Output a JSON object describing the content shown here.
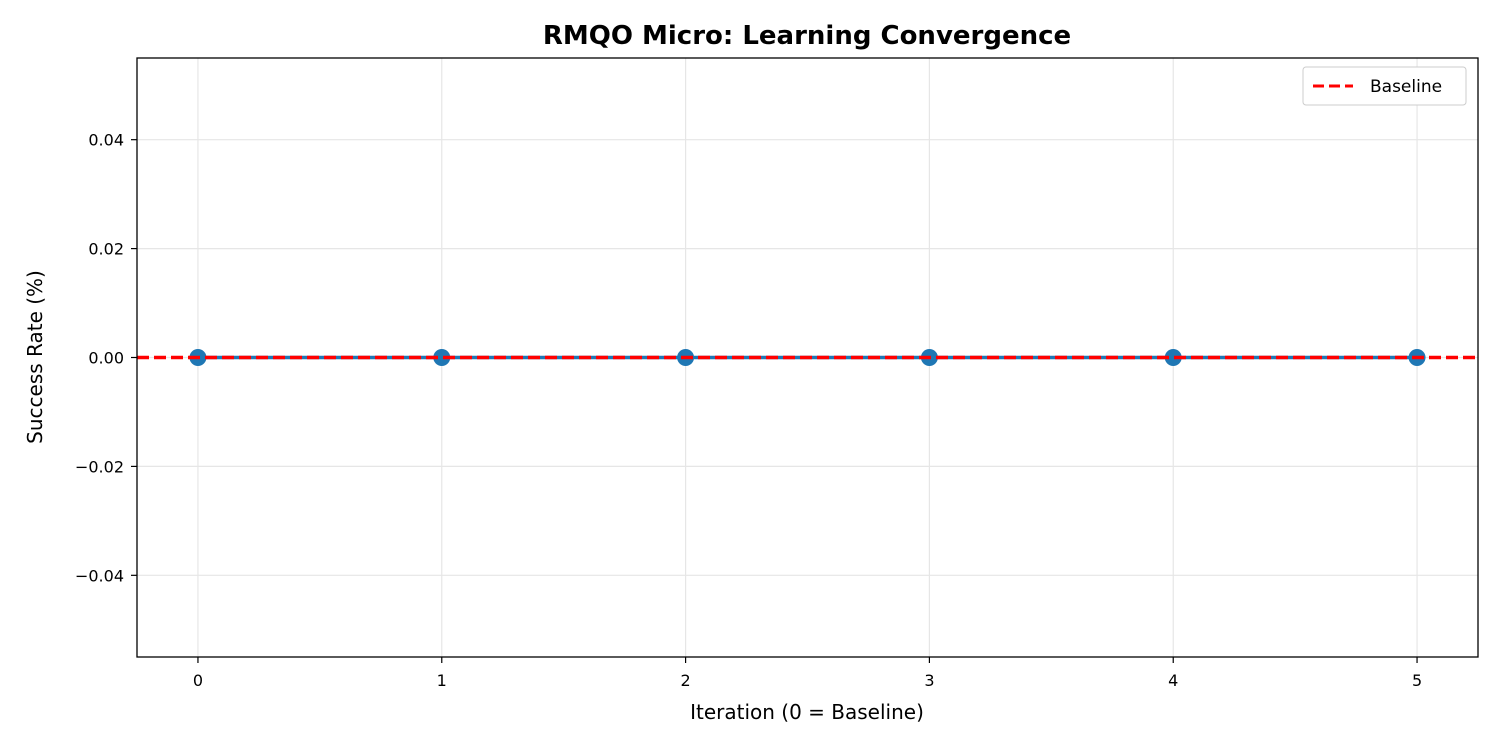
{
  "chart_data": {
    "type": "line",
    "title": "RMQO Micro: Learning Convergence",
    "xlabel": "Iteration (0 = Baseline)",
    "ylabel": "Success Rate (%)",
    "xlim": [
      -0.25,
      5.25
    ],
    "ylim": [
      -0.055,
      0.055
    ],
    "x_ticks": [
      0,
      1,
      2,
      3,
      4,
      5
    ],
    "x_tick_labels": [
      "0",
      "1",
      "2",
      "3",
      "4",
      "5"
    ],
    "y_ticks": [
      0.04,
      0.02,
      0.0,
      -0.02,
      -0.04
    ],
    "y_tick_labels": [
      "0.04",
      "0.02",
      "0.00",
      "−0.02",
      "−0.04"
    ],
    "grid": true,
    "legend_position": "top-right",
    "series": [
      {
        "x": [
          0,
          1,
          2,
          3,
          4,
          5
        ],
        "values": [
          0,
          0,
          0,
          0,
          0,
          0
        ],
        "color": "#1f77b4",
        "marker": "circle"
      }
    ],
    "reference_lines": [
      {
        "name": "Baseline",
        "orientation": "horizontal",
        "y": 0,
        "color": "#ff0000",
        "style": "dashed"
      }
    ]
  }
}
